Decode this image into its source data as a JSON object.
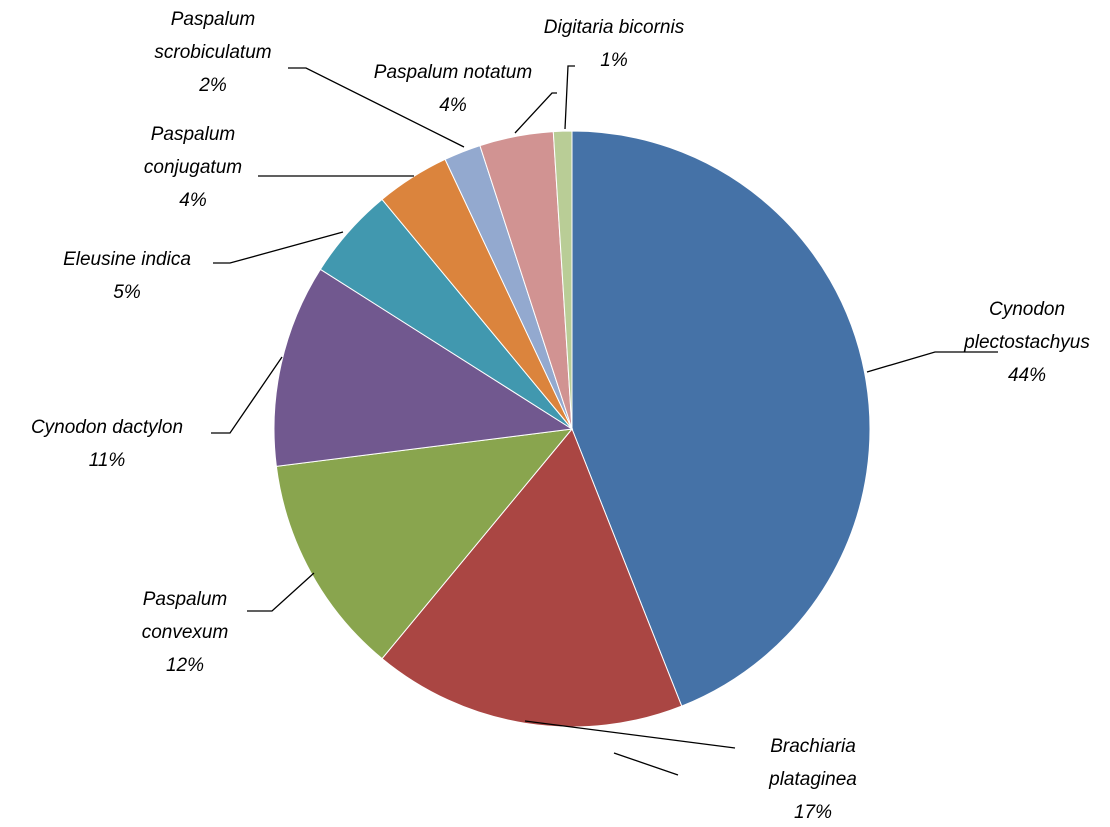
{
  "chart_data": {
    "type": "pie",
    "start_angle_deg": 0,
    "direction": "clockwise",
    "slices": [
      {
        "name": "Cynodon plectostachyus",
        "label_lines": [
          "Cynodon",
          "plectostachyus"
        ],
        "value": 44,
        "percent_label": "44%",
        "color": "#4572A7"
      },
      {
        "name": "Brachiaria plataginea",
        "label_lines": [
          "Brachiaria",
          "plataginea"
        ],
        "value": 17,
        "percent_label": "17%",
        "color": "#AA4643"
      },
      {
        "name": "Paspalum convexum",
        "label_lines": [
          "Paspalum",
          "convexum"
        ],
        "value": 12,
        "percent_label": "12%",
        "color": "#89A54E"
      },
      {
        "name": "Cynodon dactylon",
        "label_lines": [
          "Cynodon dactylon"
        ],
        "value": 11,
        "percent_label": "11%",
        "color": "#71588F"
      },
      {
        "name": "Eleusine indica",
        "label_lines": [
          "Eleusine indica"
        ],
        "value": 5,
        "percent_label": "5%",
        "color": "#4198AF"
      },
      {
        "name": "Paspalum conjugatum",
        "label_lines": [
          "Paspalum",
          "conjugatum"
        ],
        "value": 4,
        "percent_label": "4%",
        "color": "#DB843D"
      },
      {
        "name": "Paspalum scrobiculatum",
        "label_lines": [
          "Paspalum",
          "scrobiculatum"
        ],
        "value": 2,
        "percent_label": "2%",
        "color": "#93A9CF"
      },
      {
        "name": "Paspalum notatum",
        "label_lines": [
          "Paspalum notatum"
        ],
        "value": 4,
        "percent_label": "4%",
        "color": "#D19392"
      },
      {
        "name": "Digitaria bicornis",
        "label_lines": [
          "Digitaria bicornis"
        ],
        "value": 1,
        "percent_label": "1%",
        "color": "#B9CD96"
      }
    ]
  }
}
